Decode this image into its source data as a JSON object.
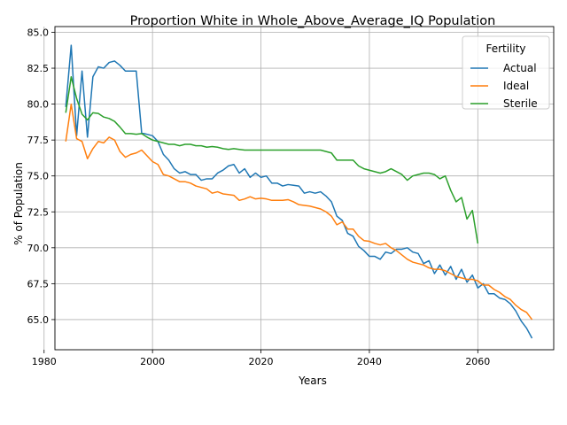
{
  "chart_data": {
    "type": "line",
    "title": "Proportion White in Whole_Above_Average_IQ Population",
    "xlabel": "Years",
    "ylabel": "% of Population",
    "xlim": [
      1982,
      2074
    ],
    "ylim": [
      62.9,
      85.4
    ],
    "x_ticks": [
      1980,
      2000,
      2020,
      2040,
      2060
    ],
    "x_tick_labels": [
      "1980",
      "2000",
      "2020",
      "2040",
      "2060"
    ],
    "y_ticks": [
      65.0,
      67.5,
      70.0,
      72.5,
      75.0,
      77.5,
      80.0,
      82.5,
      85.0
    ],
    "y_tick_labels": [
      "65.0",
      "67.5",
      "70.0",
      "72.5",
      "75.0",
      "77.5",
      "80.0",
      "82.5",
      "85.0"
    ],
    "grid": true,
    "legend": {
      "title": "Fertility",
      "position": "top-right"
    },
    "series": [
      {
        "name": "Actual",
        "color": "#1f77b4",
        "points": [
          [
            1984,
            79.8
          ],
          [
            1985,
            84.1
          ],
          [
            1986,
            77.8
          ],
          [
            1987,
            82.3
          ],
          [
            1988,
            77.7
          ],
          [
            1989,
            81.9
          ],
          [
            1990,
            82.6
          ],
          [
            1991,
            82.5
          ],
          [
            1992,
            82.9
          ],
          [
            1993,
            83.0
          ],
          [
            1994,
            82.7
          ],
          [
            1995,
            82.3
          ],
          [
            1996,
            82.3
          ],
          [
            1997,
            82.3
          ],
          [
            1998,
            78.0
          ],
          [
            1999,
            77.9
          ],
          [
            2000,
            77.8
          ],
          [
            2001,
            77.4
          ],
          [
            2002,
            76.5
          ],
          [
            2003,
            76.1
          ],
          [
            2004,
            75.5
          ],
          [
            2005,
            75.2
          ],
          [
            2006,
            75.3
          ],
          [
            2007,
            75.1
          ],
          [
            2008,
            75.1
          ],
          [
            2009,
            74.7
          ],
          [
            2010,
            74.8
          ],
          [
            2011,
            74.8
          ],
          [
            2012,
            75.2
          ],
          [
            2013,
            75.4
          ],
          [
            2014,
            75.7
          ],
          [
            2015,
            75.8
          ],
          [
            2016,
            75.2
          ],
          [
            2017,
            75.5
          ],
          [
            2018,
            74.9
          ],
          [
            2019,
            75.2
          ],
          [
            2020,
            74.9
          ],
          [
            2021,
            75.0
          ],
          [
            2022,
            74.5
          ],
          [
            2023,
            74.5
          ],
          [
            2024,
            74.3
          ],
          [
            2025,
            74.4
          ],
          [
            2026,
            74.35
          ],
          [
            2027,
            74.3
          ],
          [
            2028,
            73.8
          ],
          [
            2029,
            73.9
          ],
          [
            2030,
            73.8
          ],
          [
            2031,
            73.9
          ],
          [
            2032,
            73.6
          ],
          [
            2033,
            73.2
          ],
          [
            2034,
            72.2
          ],
          [
            2035,
            71.9
          ],
          [
            2036,
            71.0
          ],
          [
            2037,
            70.8
          ],
          [
            2038,
            70.1
          ],
          [
            2039,
            69.8
          ],
          [
            2040,
            69.4
          ],
          [
            2041,
            69.4
          ],
          [
            2042,
            69.2
          ],
          [
            2043,
            69.7
          ],
          [
            2044,
            69.6
          ],
          [
            2045,
            69.9
          ],
          [
            2046,
            69.9
          ],
          [
            2047,
            70.0
          ],
          [
            2048,
            69.7
          ],
          [
            2049,
            69.6
          ],
          [
            2050,
            68.9
          ],
          [
            2051,
            69.1
          ],
          [
            2052,
            68.2
          ],
          [
            2053,
            68.8
          ],
          [
            2054,
            68.1
          ],
          [
            2055,
            68.7
          ],
          [
            2056,
            67.8
          ],
          [
            2057,
            68.5
          ],
          [
            2058,
            67.6
          ],
          [
            2059,
            68.1
          ],
          [
            2060,
            67.2
          ],
          [
            2061,
            67.5
          ],
          [
            2062,
            66.8
          ],
          [
            2063,
            66.8
          ],
          [
            2064,
            66.5
          ],
          [
            2065,
            66.4
          ],
          [
            2066,
            66.1
          ],
          [
            2067,
            65.6
          ],
          [
            2068,
            64.9
          ],
          [
            2069,
            64.4
          ],
          [
            2070,
            63.7
          ]
        ]
      },
      {
        "name": "Ideal",
        "color": "#ff7f0e",
        "points": [
          [
            1984,
            77.4
          ],
          [
            1985,
            80.0
          ],
          [
            1986,
            77.6
          ],
          [
            1987,
            77.4
          ],
          [
            1988,
            76.2
          ],
          [
            1989,
            76.9
          ],
          [
            1990,
            77.4
          ],
          [
            1991,
            77.3
          ],
          [
            1992,
            77.7
          ],
          [
            1993,
            77.5
          ],
          [
            1994,
            76.7
          ],
          [
            1995,
            76.3
          ],
          [
            1996,
            76.5
          ],
          [
            1997,
            76.6
          ],
          [
            1998,
            76.8
          ],
          [
            1999,
            76.4
          ],
          [
            2000,
            76.0
          ],
          [
            2001,
            75.8
          ],
          [
            2002,
            75.1
          ],
          [
            2003,
            75.0
          ],
          [
            2004,
            74.8
          ],
          [
            2005,
            74.6
          ],
          [
            2006,
            74.6
          ],
          [
            2007,
            74.5
          ],
          [
            2008,
            74.3
          ],
          [
            2009,
            74.2
          ],
          [
            2010,
            74.1
          ],
          [
            2011,
            73.8
          ],
          [
            2012,
            73.9
          ],
          [
            2013,
            73.75
          ],
          [
            2014,
            73.7
          ],
          [
            2015,
            73.65
          ],
          [
            2016,
            73.3
          ],
          [
            2017,
            73.4
          ],
          [
            2018,
            73.55
          ],
          [
            2019,
            73.4
          ],
          [
            2020,
            73.45
          ],
          [
            2021,
            73.4
          ],
          [
            2022,
            73.3
          ],
          [
            2023,
            73.3
          ],
          [
            2024,
            73.3
          ],
          [
            2025,
            73.35
          ],
          [
            2026,
            73.2
          ],
          [
            2027,
            73.0
          ],
          [
            2028,
            72.95
          ],
          [
            2029,
            72.9
          ],
          [
            2030,
            72.8
          ],
          [
            2031,
            72.7
          ],
          [
            2032,
            72.5
          ],
          [
            2033,
            72.2
          ],
          [
            2034,
            71.6
          ],
          [
            2035,
            71.8
          ],
          [
            2036,
            71.3
          ],
          [
            2037,
            71.3
          ],
          [
            2038,
            70.8
          ],
          [
            2039,
            70.5
          ],
          [
            2040,
            70.45
          ],
          [
            2041,
            70.3
          ],
          [
            2042,
            70.2
          ],
          [
            2043,
            70.3
          ],
          [
            2044,
            70.0
          ],
          [
            2045,
            69.8
          ],
          [
            2046,
            69.5
          ],
          [
            2047,
            69.2
          ],
          [
            2048,
            69.0
          ],
          [
            2049,
            68.9
          ],
          [
            2050,
            68.8
          ],
          [
            2051,
            68.6
          ],
          [
            2052,
            68.5
          ],
          [
            2053,
            68.5
          ],
          [
            2054,
            68.4
          ],
          [
            2055,
            68.2
          ],
          [
            2056,
            68.0
          ],
          [
            2057,
            67.9
          ],
          [
            2058,
            67.8
          ],
          [
            2059,
            67.8
          ],
          [
            2060,
            67.7
          ],
          [
            2061,
            67.4
          ],
          [
            2062,
            67.4
          ],
          [
            2063,
            67.1
          ],
          [
            2064,
            66.9
          ],
          [
            2065,
            66.6
          ],
          [
            2066,
            66.4
          ],
          [
            2067,
            66.0
          ],
          [
            2068,
            65.7
          ],
          [
            2069,
            65.5
          ],
          [
            2070,
            65.0
          ]
        ]
      },
      {
        "name": "Sterile",
        "color": "#2ca02c",
        "points": [
          [
            1984,
            79.4
          ],
          [
            1985,
            81.9
          ],
          [
            1986,
            80.4
          ],
          [
            1987,
            79.3
          ],
          [
            1988,
            78.9
          ],
          [
            1989,
            79.4
          ],
          [
            1990,
            79.35
          ],
          [
            1991,
            79.1
          ],
          [
            1992,
            79.0
          ],
          [
            1993,
            78.8
          ],
          [
            1994,
            78.4
          ],
          [
            1995,
            77.95
          ],
          [
            1996,
            77.95
          ],
          [
            1997,
            77.9
          ],
          [
            1998,
            77.95
          ],
          [
            1999,
            77.7
          ],
          [
            2000,
            77.5
          ],
          [
            2001,
            77.4
          ],
          [
            2002,
            77.3
          ],
          [
            2003,
            77.2
          ],
          [
            2004,
            77.2
          ],
          [
            2005,
            77.1
          ],
          [
            2006,
            77.2
          ],
          [
            2007,
            77.2
          ],
          [
            2008,
            77.1
          ],
          [
            2009,
            77.1
          ],
          [
            2010,
            77.0
          ],
          [
            2011,
            77.05
          ],
          [
            2012,
            77.0
          ],
          [
            2013,
            76.9
          ],
          [
            2014,
            76.85
          ],
          [
            2015,
            76.9
          ],
          [
            2016,
            76.85
          ],
          [
            2017,
            76.8
          ],
          [
            2018,
            76.8
          ],
          [
            2019,
            76.8
          ],
          [
            2020,
            76.8
          ],
          [
            2021,
            76.8
          ],
          [
            2022,
            76.8
          ],
          [
            2023,
            76.8
          ],
          [
            2024,
            76.8
          ],
          [
            2025,
            76.8
          ],
          [
            2026,
            76.8
          ],
          [
            2027,
            76.8
          ],
          [
            2028,
            76.8
          ],
          [
            2029,
            76.8
          ],
          [
            2030,
            76.8
          ],
          [
            2031,
            76.8
          ],
          [
            2032,
            76.7
          ],
          [
            2033,
            76.6
          ],
          [
            2034,
            76.1
          ],
          [
            2035,
            76.1
          ],
          [
            2036,
            76.1
          ],
          [
            2037,
            76.1
          ],
          [
            2038,
            75.7
          ],
          [
            2039,
            75.5
          ],
          [
            2040,
            75.4
          ],
          [
            2041,
            75.3
          ],
          [
            2042,
            75.2
          ],
          [
            2043,
            75.3
          ],
          [
            2044,
            75.5
          ],
          [
            2045,
            75.3
          ],
          [
            2046,
            75.1
          ],
          [
            2047,
            74.7
          ],
          [
            2048,
            75.0
          ],
          [
            2049,
            75.1
          ],
          [
            2050,
            75.2
          ],
          [
            2051,
            75.2
          ],
          [
            2052,
            75.1
          ],
          [
            2053,
            74.8
          ],
          [
            2054,
            75.0
          ],
          [
            2055,
            74.0
          ],
          [
            2056,
            73.2
          ],
          [
            2057,
            73.5
          ],
          [
            2058,
            72.0
          ],
          [
            2059,
            72.6
          ],
          [
            2060,
            70.3
          ]
        ]
      }
    ]
  }
}
